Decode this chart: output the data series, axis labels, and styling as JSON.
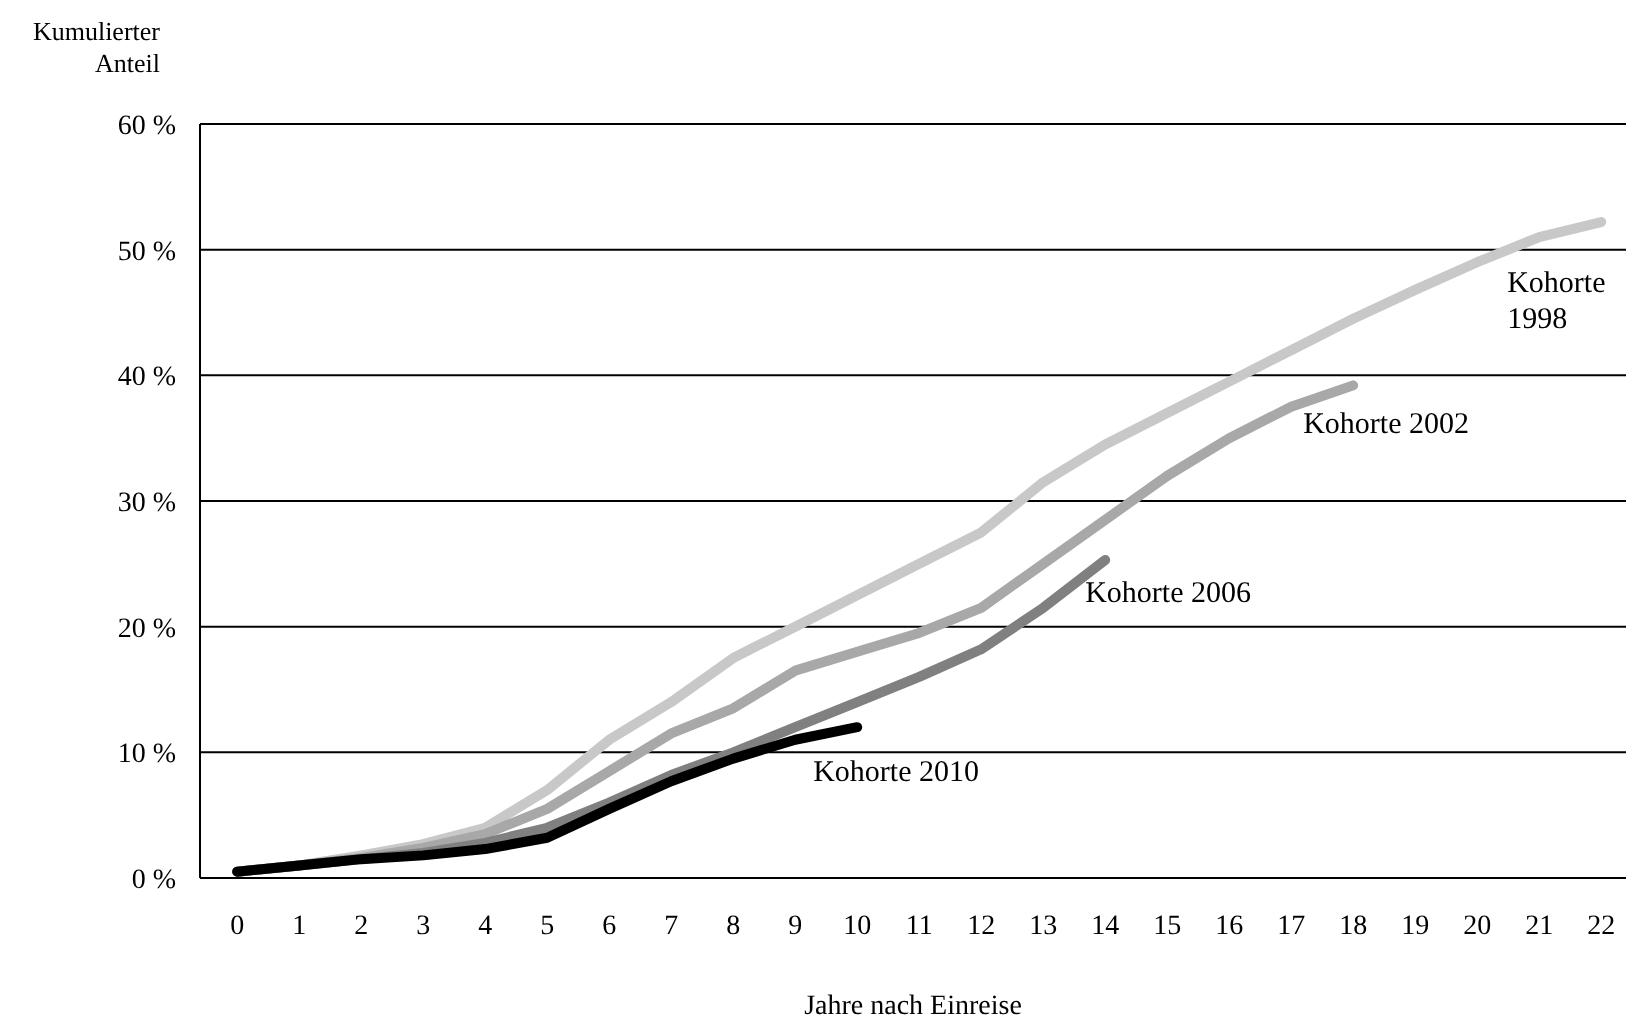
{
  "chart_data": {
    "type": "line",
    "xlabel": "Jahre nach Einreise",
    "ylabel": "Kumulierter Anteil",
    "x": [
      0,
      1,
      2,
      3,
      4,
      5,
      6,
      7,
      8,
      9,
      10,
      11,
      12,
      13,
      14,
      15,
      16,
      17,
      18,
      19,
      20,
      21,
      22
    ],
    "xlim": [
      -0.6,
      22.4
    ],
    "xticks": [
      0,
      1,
      2,
      3,
      4,
      5,
      6,
      7,
      8,
      9,
      10,
      11,
      12,
      13,
      14,
      15,
      16,
      17,
      18,
      19,
      20,
      21,
      22
    ],
    "ylim": [
      0,
      60
    ],
    "yticks": [
      {
        "value": 0,
        "label": "0 %"
      },
      {
        "value": 10,
        "label": "10 %"
      },
      {
        "value": 20,
        "label": "20 %"
      },
      {
        "value": 30,
        "label": "30 %"
      },
      {
        "value": 40,
        "label": "40 %"
      },
      {
        "value": 50,
        "label": "50 %"
      },
      {
        "value": 60,
        "label": "60 %"
      }
    ],
    "grid": "y",
    "marker": "none",
    "line_style": "solid",
    "series": [
      {
        "name": "Kohorte 1998",
        "color": "#c8c8c8",
        "values": [
          0.5,
          1,
          1.8,
          2.7,
          4,
          7,
          11,
          14,
          17.5,
          20,
          22.5,
          25,
          27.5,
          31.5,
          34.5,
          37,
          39.5,
          42,
          44.5,
          46.8,
          49,
          51,
          52.2
        ]
      },
      {
        "name": "Kohorte 2002",
        "color": "#a8a8a8",
        "values": [
          0.5,
          1,
          1.6,
          2.4,
          3.5,
          5.5,
          8.5,
          11.5,
          13.5,
          16.5,
          18,
          19.5,
          21.5,
          25,
          28.5,
          32,
          35,
          37.5,
          39.2,
          null,
          null,
          null,
          null
        ]
      },
      {
        "name": "Kohorte 2006",
        "color": "#808080",
        "values": [
          0.5,
          1,
          1.5,
          2,
          2.8,
          4,
          6,
          8.2,
          10,
          12,
          14,
          16,
          18.2,
          21.5,
          25.3,
          null,
          null,
          null,
          null,
          null,
          null,
          null,
          null
        ]
      },
      {
        "name": "Kohorte 2010",
        "color": "#000000",
        "values": [
          0.5,
          1,
          1.5,
          1.8,
          2.3,
          3.2,
          5.5,
          7.7,
          9.5,
          11,
          12,
          null,
          null,
          null,
          null,
          null,
          null,
          null,
          null,
          null,
          null,
          null,
          null
        ]
      }
    ]
  }
}
